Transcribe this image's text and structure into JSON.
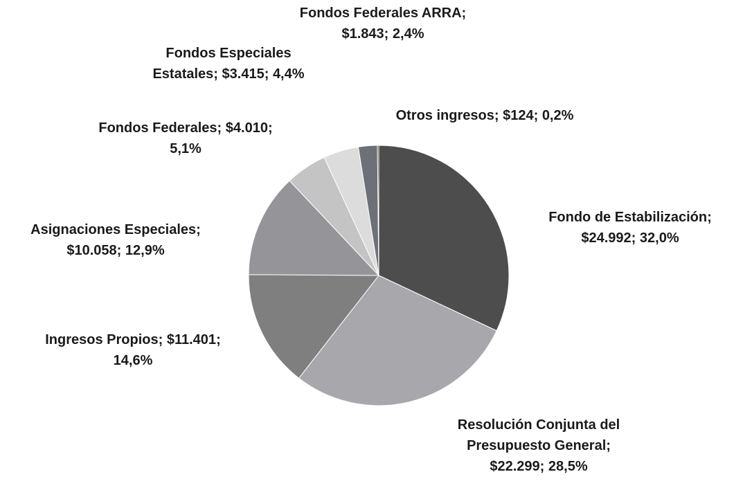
{
  "chart_data": {
    "type": "pie",
    "categories": [
      "Fondo de Estabilización",
      "Resolución Conjunta del Presupuesto General",
      "Ingresos Propios",
      "Asignaciones Especiales",
      "Fondos Federales",
      "Fondos Especiales Estatales",
      "Fondos Federales ARRA",
      "Otros ingresos"
    ],
    "values": [
      24992,
      22299,
      11401,
      10058,
      4010,
      3415,
      1843,
      124
    ],
    "value_labels": [
      "$24.992",
      "$22.299",
      "$11.401",
      "$10.058",
      "$4.010",
      "$3.415",
      "$1.843",
      "$124"
    ],
    "shares": [
      32.0,
      28.5,
      14.6,
      12.9,
      5.1,
      4.4,
      2.4,
      0.2
    ],
    "share_labels": [
      "32,0%",
      "28,5%",
      "14,6%",
      "12,9%",
      "5,1%",
      "4,4%",
      "2,4%",
      "0,2%"
    ],
    "separator": ";",
    "colors": [
      "#4d4d4d",
      "#a8a7ac",
      "#7f7f7f",
      "#959499",
      "#c4c4c4",
      "#dcdcdc",
      "#6d7076",
      "#2a2a2a"
    ]
  }
}
